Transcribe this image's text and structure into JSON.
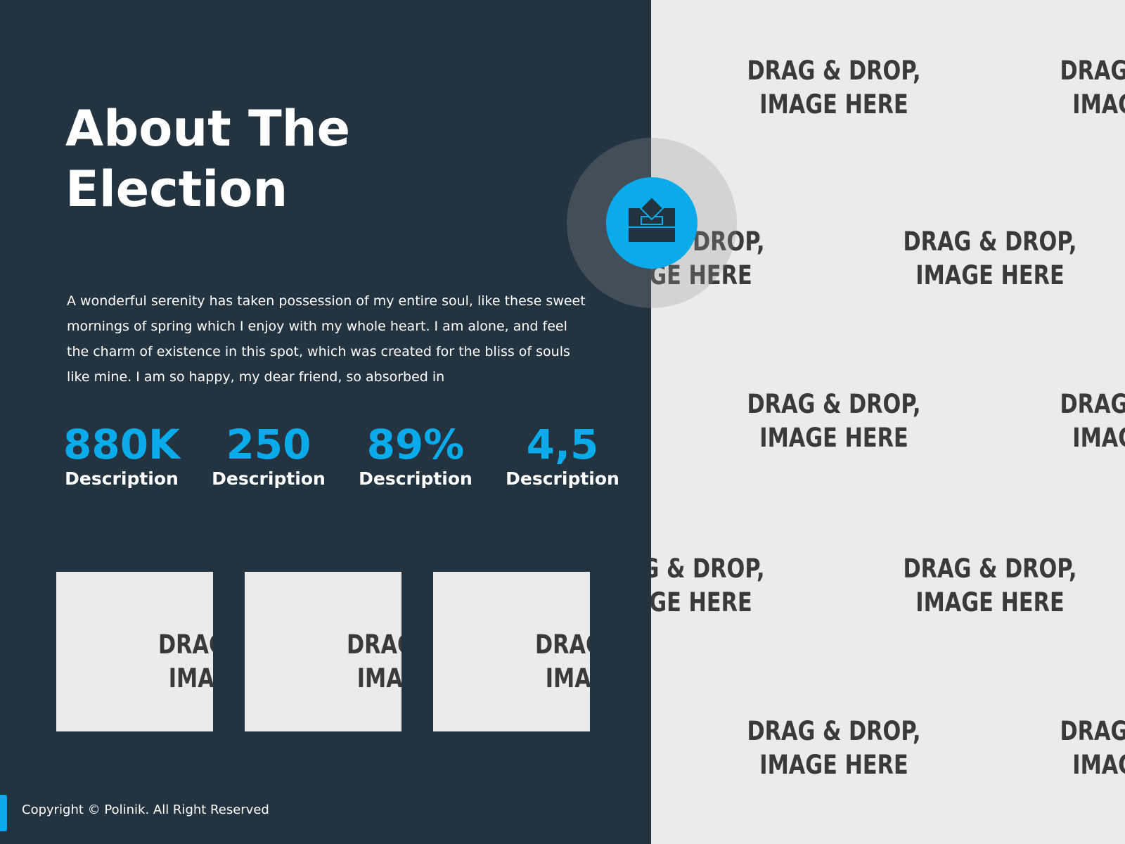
{
  "hero": {
    "title_line1": "About The",
    "title_line2": "Election",
    "body": "A wonderful serenity has taken possession of my entire soul, like these sweet mornings of spring which I enjoy with my whole heart. I am alone, and feel the charm of existence in this spot, which was created for the bliss of souls like mine. I am so happy, my dear friend, so absorbed in"
  },
  "stats": [
    {
      "value": "880K",
      "label": "Description"
    },
    {
      "value": "250",
      "label": "Description"
    },
    {
      "value": "89%",
      "label": "Description"
    },
    {
      "value": "4,5",
      "label": "Description"
    }
  ],
  "placeholder": {
    "line1": "DRAG & DROP,",
    "line2": "IMAGE HERE",
    "thumb_line1": "DRAG",
    "thumb_line2": "IMA"
  },
  "badge": {
    "icon": "ballot-box-icon"
  },
  "footer": {
    "copyright": "Copyright © Polinik. All Right Reserved"
  },
  "colors": {
    "panel": "#233340",
    "accent": "#0aabeb",
    "placeholder_bg": "#ebebeb"
  }
}
